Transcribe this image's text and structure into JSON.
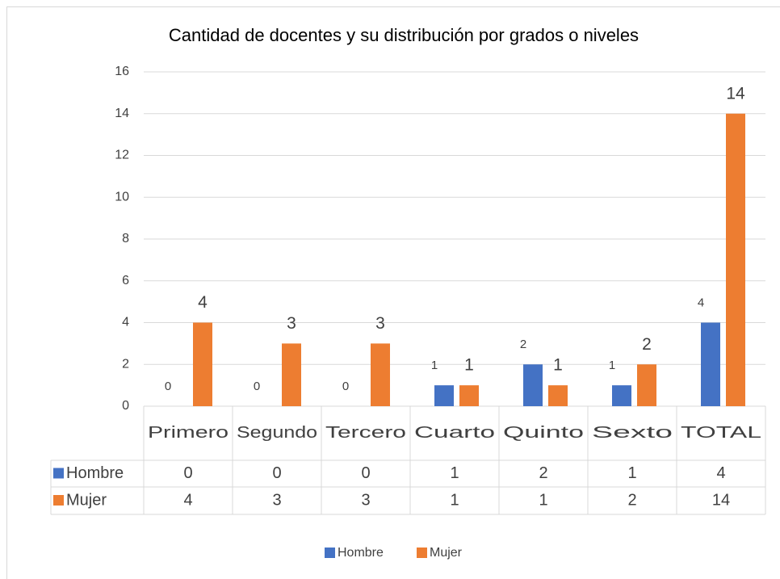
{
  "chart_data": {
    "type": "bar",
    "title": "Cantidad de docentes y su distribución por grados o niveles",
    "categories": [
      "Primero",
      "Segundo",
      "Tercero",
      "Cuarto",
      "Quinto",
      "Sexto",
      "TOTAL"
    ],
    "series": [
      {
        "name": "Hombre",
        "color": "#4472c4",
        "values": [
          0,
          0,
          0,
          1,
          2,
          1,
          4
        ]
      },
      {
        "name": "Mujer",
        "color": "#ed7d31",
        "values": [
          4,
          3,
          3,
          1,
          1,
          2,
          14
        ]
      }
    ],
    "ylim": [
      0,
      16
    ],
    "yticks": [
      0,
      2,
      4,
      6,
      8,
      10,
      12,
      14,
      16
    ],
    "grid": true,
    "legend": "bottom",
    "data_table": true
  }
}
